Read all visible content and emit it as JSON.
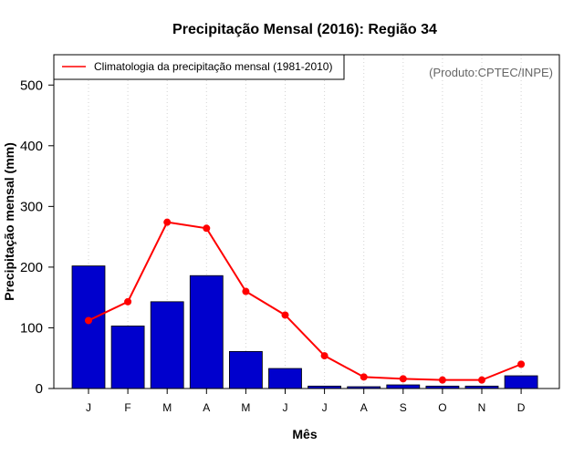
{
  "chart_data": {
    "type": "bar",
    "title": "Precipitação Mensal (2016): Região 34",
    "xlabel": "Mês",
    "ylabel": "Precipitação mensal (mm)",
    "ylim": [
      0,
      550
    ],
    "yticks": [
      0,
      100,
      200,
      300,
      400,
      500
    ],
    "categories": [
      "J",
      "F",
      "M",
      "A",
      "M",
      "J",
      "J",
      "A",
      "S",
      "O",
      "N",
      "D"
    ],
    "series": [
      {
        "name": "Precipitação mensal 2016",
        "kind": "bar",
        "color": "#0000CD",
        "values": [
          202,
          103,
          143,
          186,
          61,
          33,
          4,
          3,
          6,
          4,
          4,
          21
        ]
      },
      {
        "name": "Climatologia da precipitação mensal (1981-2010)",
        "kind": "line",
        "color": "#FF0000",
        "values": [
          112,
          143,
          274,
          264,
          160,
          121,
          54,
          19,
          16,
          14,
          14,
          40
        ]
      }
    ],
    "legend_position": "top-left",
    "grid": "vertical dotted",
    "annotation": "(Produto:CPTEC/INPE)"
  }
}
